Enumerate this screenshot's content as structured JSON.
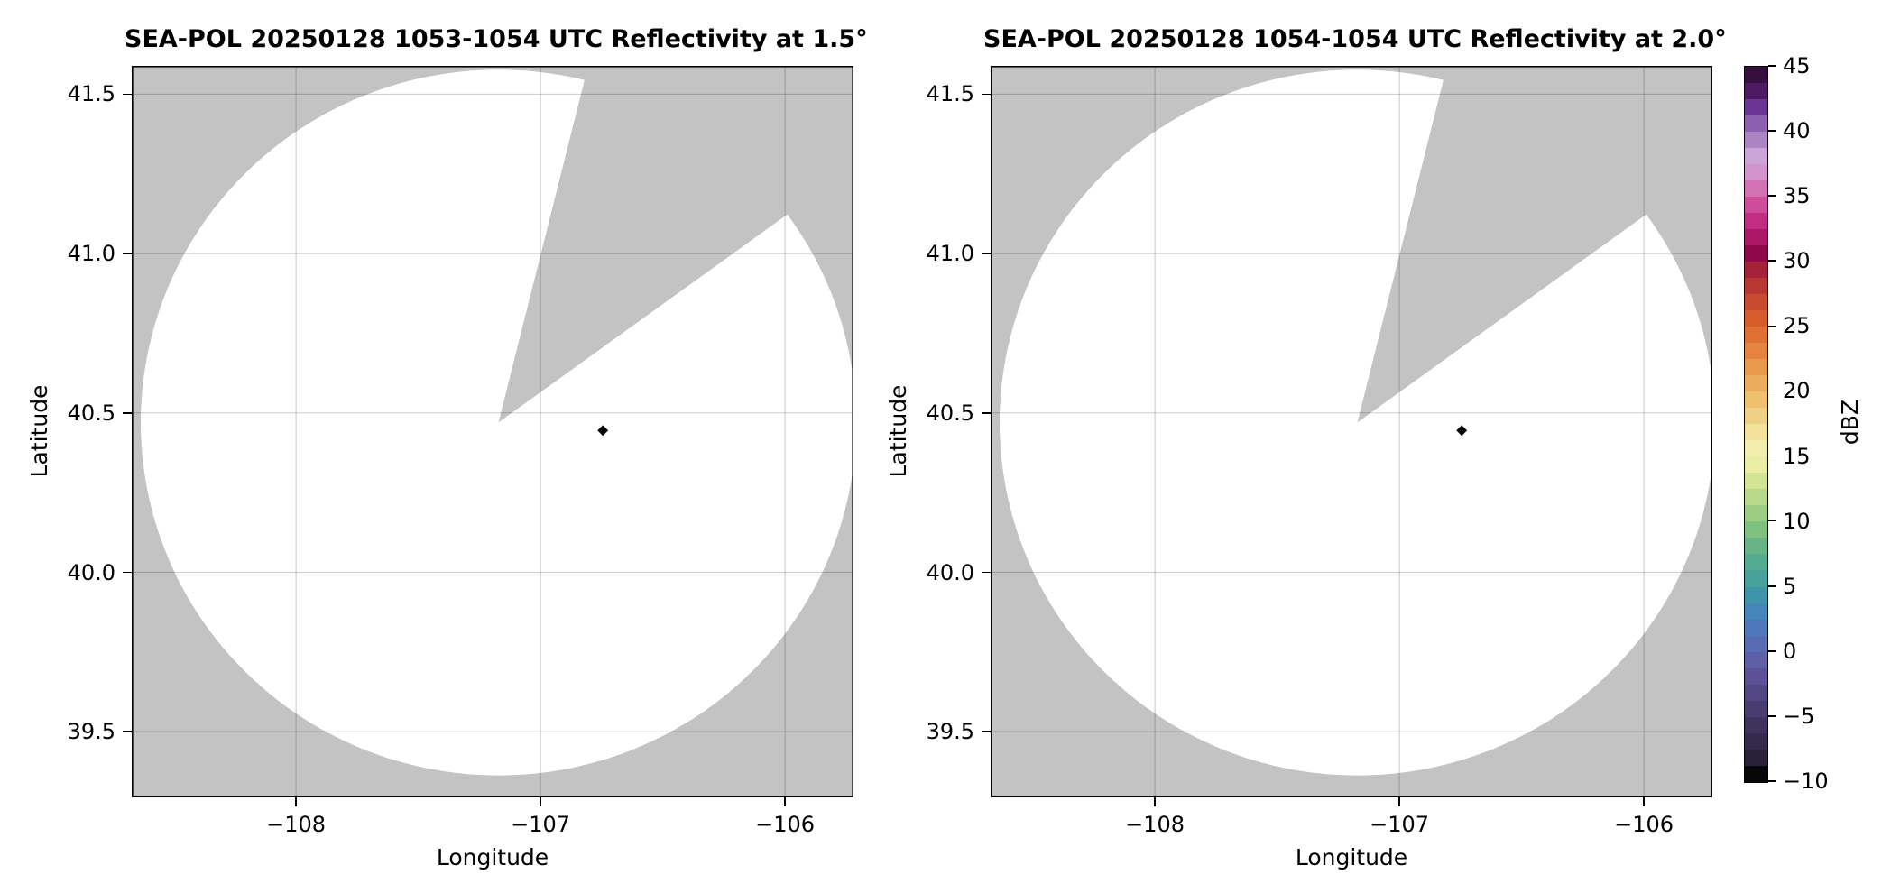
{
  "chart_data": {
    "type": "radar_ppi",
    "instrument": "SEA-POL",
    "panels": [
      {
        "title": "SEA-POL 20250128 1053-1054 UTC Reflectivity at 1.5°",
        "elevation_deg": 1.5,
        "time_utc": "1053-1054"
      },
      {
        "title": "SEA-POL 20250128 1054-1054 UTC Reflectivity at 2.0°",
        "elevation_deg": 2.0,
        "time_utc": "1054-1054"
      }
    ],
    "xlabel": "Longitude",
    "ylabel": "Latitude",
    "xlim": [
      -108.672,
      -105.72
    ],
    "ylim": [
      39.294,
      41.589
    ],
    "xticks": {
      "values": [
        -108,
        -107,
        -106
      ],
      "labels": [
        "−108",
        "−107",
        "−106"
      ]
    },
    "yticks": {
      "values": [
        41.5,
        41.0,
        40.5,
        40.0,
        39.5
      ],
      "labels": [
        "41.5",
        "41.0",
        "40.5",
        "40.0",
        "39.5"
      ]
    },
    "radar": {
      "lon": -107.172,
      "lat": 40.47,
      "coverage_radius_lat_deg": 1.107,
      "coverage_radius_lon_deg": 1.463
    },
    "missing_sector_az_deg": [
      14,
      54
    ],
    "echo_point": {
      "lon": -106.745,
      "lat": 40.445,
      "color": "#060608"
    },
    "colors": {
      "no_data_gray": "#c3c3c3",
      "scanned_white": "#ffffff",
      "grid": "rgba(0,0,0,0.18)",
      "frame": "#000000"
    },
    "colorbar": {
      "label": "dBZ",
      "vmin": -10,
      "vmax": 45,
      "tick_values": [
        45,
        40,
        35,
        30,
        25,
        20,
        15,
        10,
        5,
        0,
        -5,
        -10
      ],
      "tick_labels": [
        "45",
        "40",
        "35",
        "30",
        "25",
        "20",
        "15",
        "10",
        "5",
        "0",
        "−5",
        "−10"
      ],
      "band_step_dbz": 1.25,
      "band_colors_top_to_bottom": [
        "#33103d",
        "#4e1a63",
        "#6b3596",
        "#8e5fb0",
        "#ab84c4",
        "#cba4d8",
        "#d393cc",
        "#d272b4",
        "#cd4d9b",
        "#c22d83",
        "#ad1766",
        "#8d094c",
        "#a52138",
        "#b93733",
        "#c94a2e",
        "#d65c2b",
        "#e06f33",
        "#e5843e",
        "#e8994b",
        "#ebad5b",
        "#eec06f",
        "#f0d084",
        "#f3e29b",
        "#f3eeae",
        "#e9eda6",
        "#d3e494",
        "#b7d98a",
        "#9bce82",
        "#7fc27f",
        "#67b584",
        "#55ab8f",
        "#47a29b",
        "#3f94ab",
        "#4585bb",
        "#4f77bb",
        "#5a6bb3",
        "#5f5fa8",
        "#5c5198",
        "#534684",
        "#493c71",
        "#3f335e",
        "#352a4c",
        "#29213a",
        "#070609"
      ]
    }
  }
}
